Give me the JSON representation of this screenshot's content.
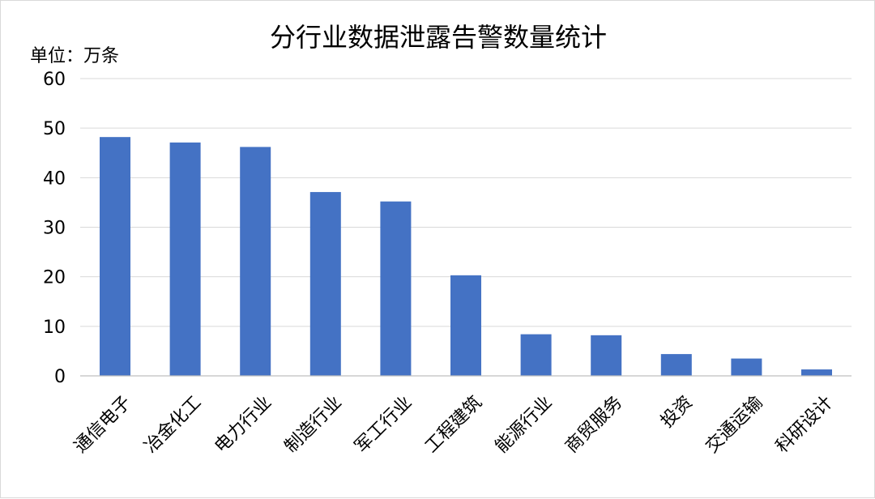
{
  "chart_data": {
    "type": "bar",
    "title": "分行业数据泄露告警数量统计",
    "unit_label": "单位：万条",
    "categories": [
      "通信电子",
      "冶金化工",
      "电力行业",
      "制造行业",
      "军工行业",
      "工程建筑",
      "能源行业",
      "商贸服务",
      "投资",
      "交通运输",
      "科研设计"
    ],
    "values": [
      48.2,
      47.1,
      46.2,
      37.1,
      35.2,
      20.3,
      8.4,
      8.2,
      4.4,
      3.5,
      1.3
    ],
    "ylim": [
      0,
      60
    ],
    "yticks": [
      0,
      10,
      20,
      30,
      40,
      50,
      60
    ],
    "bar_color": "#4472C4",
    "grid": true,
    "legend": "none"
  }
}
